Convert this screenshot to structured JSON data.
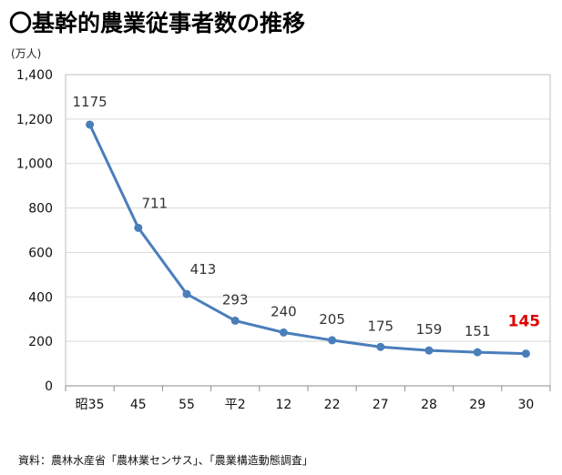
{
  "title": "〇基幹的農業従事者数の推移",
  "unit_label": "(万人)",
  "source": "資料：農林水産省「農林業センサス」、「農業構造動態調査」",
  "chart_data": {
    "type": "line",
    "categories": [
      "昭35",
      "45",
      "55",
      "平2",
      "12",
      "22",
      "27",
      "28",
      "29",
      "30"
    ],
    "values": [
      1175,
      711,
      413,
      293,
      240,
      205,
      175,
      159,
      151,
      145
    ],
    "data_labels": [
      "1175",
      "711",
      "413",
      "293",
      "240",
      "205",
      "175",
      "159",
      "151",
      "145"
    ],
    "yticks": [
      "0",
      "200",
      "400",
      "600",
      "800",
      "1,000",
      "1,200",
      "1,400"
    ],
    "ylim": [
      0,
      1400
    ],
    "grid": true,
    "line_color": "#4a7ebb",
    "highlight_color": "#e00000"
  }
}
